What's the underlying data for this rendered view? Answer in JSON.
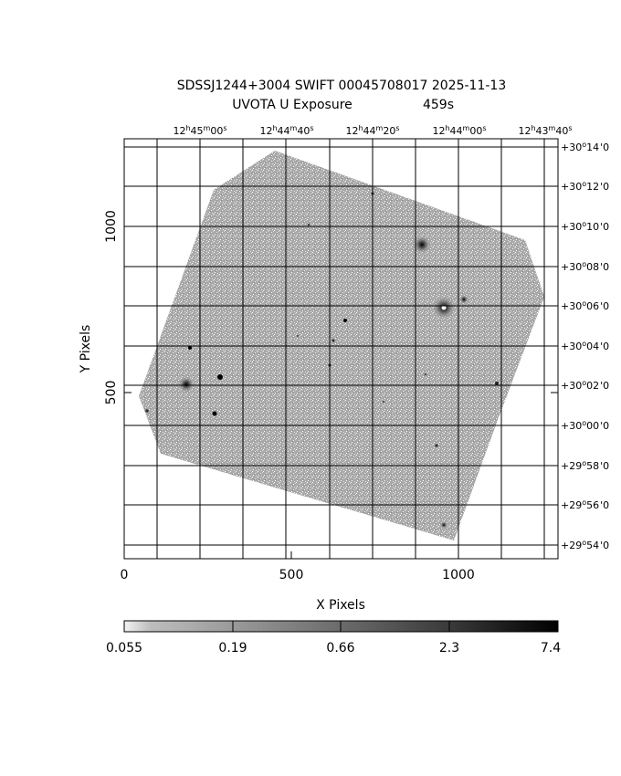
{
  "title": {
    "line1": "SDSSJ1244+3004 SWIFT 00045708017 2025-11-13",
    "line2_label": "UVOTA U Exposure",
    "line2_value": "459s"
  },
  "axes": {
    "xlabel": "X Pixels",
    "ylabel": "Y Pixels",
    "x_ticks": [
      "0",
      "500",
      "1000"
    ],
    "y_ticks": [
      "500",
      "1000"
    ],
    "x_range": [
      0,
      1300
    ],
    "y_range": [
      0,
      1250
    ],
    "ra_ticks": [
      {
        "h": "12",
        "m": "45",
        "s": "00"
      },
      {
        "h": "12",
        "m": "44",
        "s": "40"
      },
      {
        "h": "12",
        "m": "44",
        "s": "20"
      },
      {
        "h": "12",
        "m": "44",
        "s": "00"
      },
      {
        "h": "12",
        "m": "43",
        "s": "40"
      }
    ],
    "dec_ticks": [
      {
        "d": "+30",
        "m": "14"
      },
      {
        "d": "+30",
        "m": "12"
      },
      {
        "d": "+30",
        "m": "10"
      },
      {
        "d": "+30",
        "m": "08"
      },
      {
        "d": "+30",
        "m": "06"
      },
      {
        "d": "+30",
        "m": "04"
      },
      {
        "d": "+30",
        "m": "02"
      },
      {
        "d": "+30",
        "m": "00"
      },
      {
        "d": "+29",
        "m": "58"
      },
      {
        "d": "+29",
        "m": "56"
      },
      {
        "d": "+29",
        "m": "54"
      }
    ]
  },
  "colorbar": {
    "labels": [
      "0.055",
      "0.19",
      "0.66",
      "2.3",
      "7.4"
    ],
    "scale": "log"
  },
  "colors": {
    "background": "#ffffff",
    "image_fill": "#a6a6a6",
    "grid": "#000000"
  }
}
